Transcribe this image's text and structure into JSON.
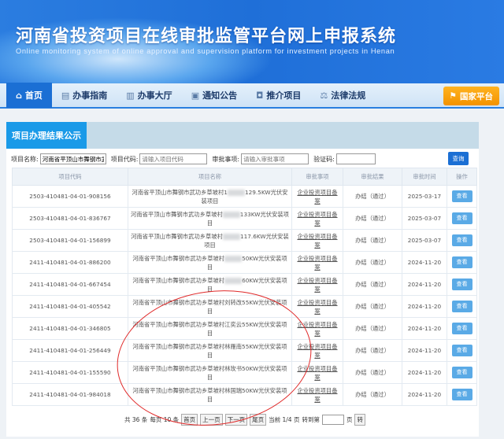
{
  "header": {
    "title": "河南省投资项目在线审批监管平台网上申报系统",
    "subtitle": "Online monitoring system of online approval and supervision platform for investment projects in Henan"
  },
  "nav": {
    "items": [
      {
        "label": "首页",
        "icon": "home-icon"
      },
      {
        "label": "办事指南",
        "icon": "document-icon"
      },
      {
        "label": "办事大厅",
        "icon": "building-icon"
      },
      {
        "label": "通知公告",
        "icon": "notice-icon"
      },
      {
        "label": "推介项目",
        "icon": "project-icon"
      },
      {
        "label": "法律法规",
        "icon": "law-icon"
      }
    ],
    "national": "国家平台"
  },
  "panel": {
    "title": "项目办理结果公示"
  },
  "search": {
    "name_label": "项目名称:",
    "name_value": "河南省平顶山市舞钢市武",
    "code_label": "项目代码:",
    "code_placeholder": "请输入项目代码",
    "matter_label": "审批事项:",
    "matter_placeholder": "请输入审批事项",
    "captcha_label": "验证码:",
    "query": "查询"
  },
  "table": {
    "headers": [
      "项目代码",
      "项目名称",
      "审批事项",
      "审批结果",
      "审批时间",
      "操作"
    ],
    "rows": [
      {
        "code": "2503-410481-04-01-908156",
        "name_a": "河南省平顶山市舞钢市武功乡草坡村1",
        "name_b": "129.5KW光伏安装项目",
        "matter": "企业投资项目备案",
        "result": "办结（通过）",
        "date": "2025-03-17",
        "action": "查看"
      },
      {
        "code": "2503-410481-04-01-836767",
        "name_a": "河南省平顶山市舞钢市武功乡草坡村",
        "name_b": "133KW光伏安装项目",
        "matter": "企业投资项目备案",
        "result": "办结（通过）",
        "date": "2025-03-07",
        "action": "查看"
      },
      {
        "code": "2503-410481-04-01-156899",
        "name_a": "河南省平顶山市舞钢市武功乡草坡村",
        "name_b": "117.6KW光伏安装项目",
        "matter": "企业投资项目备案",
        "result": "办结（通过）",
        "date": "2025-03-07",
        "action": "查看"
      },
      {
        "code": "2411-410481-04-01-886200",
        "name_a": "河南省平顶山市舞钢市武功乡草坡村",
        "name_b": "50KW光伏安装项目",
        "matter": "企业投资项目备案",
        "result": "办结（通过）",
        "date": "2024-11-20",
        "action": "查看"
      },
      {
        "code": "2411-410481-04-01-667454",
        "name_a": "河南省平顶山市舞钢市武功乡草坡村",
        "name_b": "60KW光伏安装项目",
        "matter": "企业投资项目备案",
        "result": "办结（通过）",
        "date": "2024-11-20",
        "action": "查看"
      },
      {
        "code": "2411-410481-04-01-405542",
        "name_a": "河南省平顶山市舞钢市武功乡草坡村刘转改55KW光伏安装项目",
        "name_b": "",
        "matter": "企业投资项目备案",
        "result": "办结（通过）",
        "date": "2024-11-20",
        "action": "查看"
      },
      {
        "code": "2411-410481-04-01-346805",
        "name_a": "河南省平顶山市舞钢市武功乡草坡村江奕云55KW光伏安装项目",
        "name_b": "",
        "matter": "企业投资项目备案",
        "result": "办结（通过）",
        "date": "2024-11-20",
        "action": "查看"
      },
      {
        "code": "2411-410481-04-01-256449",
        "name_a": "河南省平顶山市舞钢市武功乡草坡村林雁南55KW光伏安装项目",
        "name_b": "",
        "matter": "企业投资项目备案",
        "result": "办结（通过）",
        "date": "2024-11-20",
        "action": "查看"
      },
      {
        "code": "2411-410481-04-01-155590",
        "name_a": "河南省平顶山市舞钢市武功乡草坡村林玫书50KW光伏安装项目",
        "name_b": "",
        "matter": "企业投资项目备案",
        "result": "办结（通过）",
        "date": "2024-11-20",
        "action": "查看"
      },
      {
        "code": "2411-410481-04-01-984018",
        "name_a": "河南省平顶山市舞钢市武功乡草坡村林国瑞50KW光伏安装项目",
        "name_b": "",
        "matter": "企业投资项目备案",
        "result": "办结（通过）",
        "date": "2024-11-20",
        "action": "查看"
      }
    ]
  },
  "pager": {
    "total": "共 36 条",
    "per_page": "每页 10 条",
    "first": "首页",
    "prev": "上一页",
    "next": "下一页",
    "last": "尾页",
    "current": "当前 1/4 页",
    "goto": "转到第",
    "page": "页",
    "go": "转"
  },
  "colors": {
    "brand": "#1b6fd4",
    "tab": "#1a9ae8",
    "national": "#f39200",
    "annotation": "#e02a2a"
  }
}
